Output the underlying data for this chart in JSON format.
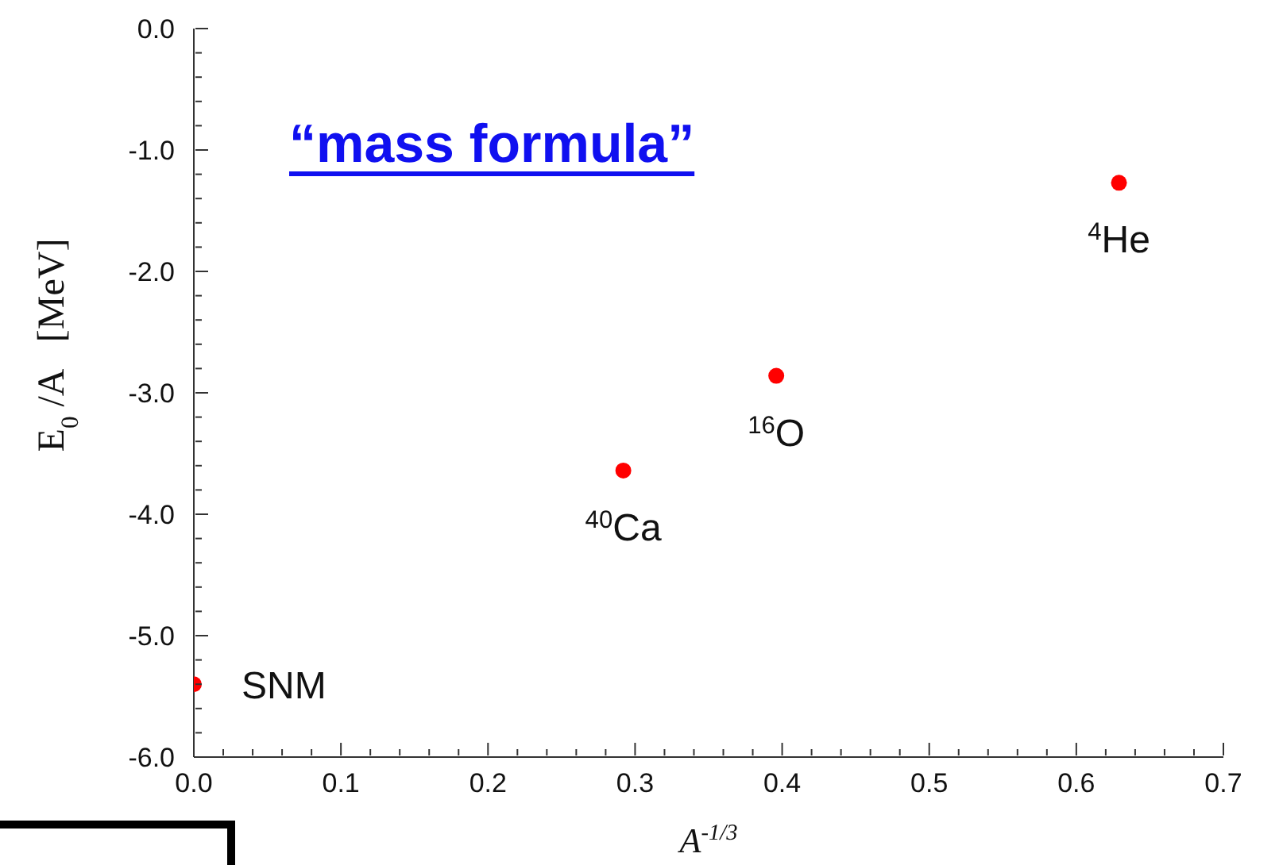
{
  "chart_data": {
    "type": "scatter",
    "title": "“mass formula”",
    "xlabel": "A$^{-1/3}$",
    "ylabel": "E$_{0}$ /A   [MeV]",
    "x": [
      0.0,
      0.292,
      0.396,
      0.629
    ],
    "values": [
      -5.4,
      -3.64,
      -2.86,
      -1.27
    ],
    "color": "#ff0000",
    "marker": "circle",
    "xlim": [
      0,
      0.7
    ],
    "ylim": [
      -6,
      0
    ],
    "xticks": [
      {
        "value": 0,
        "label": "0.0"
      },
      {
        "value": 0.02,
        "label": null
      },
      {
        "value": 0.04,
        "label": null
      },
      {
        "value": 0.06,
        "label": null
      },
      {
        "value": 0.08,
        "label": null
      },
      {
        "value": 0.1,
        "label": "0.1"
      },
      {
        "value": 0.12,
        "label": null
      },
      {
        "value": 0.14,
        "label": null
      },
      {
        "value": 0.16,
        "label": null
      },
      {
        "value": 0.18,
        "label": null
      },
      {
        "value": 0.2,
        "label": "0.2"
      },
      {
        "value": 0.22,
        "label": null
      },
      {
        "value": 0.24,
        "label": null
      },
      {
        "value": 0.26,
        "label": null
      },
      {
        "value": 0.28,
        "label": null
      },
      {
        "value": 0.3,
        "label": "0.3"
      },
      {
        "value": 0.32,
        "label": null
      },
      {
        "value": 0.34,
        "label": null
      },
      {
        "value": 0.36,
        "label": null
      },
      {
        "value": 0.38,
        "label": null
      },
      {
        "value": 0.4,
        "label": "0.4"
      },
      {
        "value": 0.42,
        "label": null
      },
      {
        "value": 0.44,
        "label": null
      },
      {
        "value": 0.46,
        "label": null
      },
      {
        "value": 0.48,
        "label": null
      },
      {
        "value": 0.5,
        "label": "0.5"
      },
      {
        "value": 0.52,
        "label": null
      },
      {
        "value": 0.54,
        "label": null
      },
      {
        "value": 0.56,
        "label": null
      },
      {
        "value": 0.58,
        "label": null
      },
      {
        "value": 0.6,
        "label": "0.6"
      },
      {
        "value": 0.62,
        "label": null
      },
      {
        "value": 0.64,
        "label": null
      },
      {
        "value": 0.66,
        "label": null
      },
      {
        "value": 0.68,
        "label": null
      },
      {
        "value": 0.7,
        "label": "0.7"
      }
    ],
    "yticks": [
      {
        "value": -6,
        "label": "-6.0"
      },
      {
        "value": -5.8,
        "label": null
      },
      {
        "value": -5.6,
        "label": null
      },
      {
        "value": -5.4,
        "label": null
      },
      {
        "value": -5.2,
        "label": null
      },
      {
        "value": -5,
        "label": "-5.0"
      },
      {
        "value": -4.8,
        "label": null
      },
      {
        "value": -4.6,
        "label": null
      },
      {
        "value": -4.4,
        "label": null
      },
      {
        "value": -4.2,
        "label": null
      },
      {
        "value": -4,
        "label": "-4.0"
      },
      {
        "value": -3.8,
        "label": null
      },
      {
        "value": -3.6,
        "label": null
      },
      {
        "value": -3.4,
        "label": null
      },
      {
        "value": -3.2,
        "label": null
      },
      {
        "value": -3,
        "label": "-3.0"
      },
      {
        "value": -2.8,
        "label": null
      },
      {
        "value": -2.6,
        "label": null
      },
      {
        "value": -2.4,
        "label": null
      },
      {
        "value": -2.2,
        "label": null
      },
      {
        "value": -2,
        "label": "-2.0"
      },
      {
        "value": -1.8,
        "label": null
      },
      {
        "value": -1.6,
        "label": null
      },
      {
        "value": -1.4,
        "label": null
      },
      {
        "value": -1.2,
        "label": null
      },
      {
        "value": -1,
        "label": "-1.0"
      },
      {
        "value": -0.8,
        "label": null
      },
      {
        "value": -0.6,
        "label": null
      },
      {
        "value": -0.4,
        "label": null
      },
      {
        "value": -0.2,
        "label": null
      },
      {
        "value": 0,
        "label": "0.0"
      }
    ],
    "annotations": [
      {
        "text": "SNM",
        "x": 0.0,
        "y": -5.4
      },
      {
        "text": "$^{40}$Ca",
        "x": 0.292,
        "y": -3.64
      },
      {
        "text": "$^{16}$O",
        "x": 0.396,
        "y": -2.86
      },
      {
        "text": "$^{4}$He",
        "x": 0.629,
        "y": -1.27
      }
    ]
  }
}
